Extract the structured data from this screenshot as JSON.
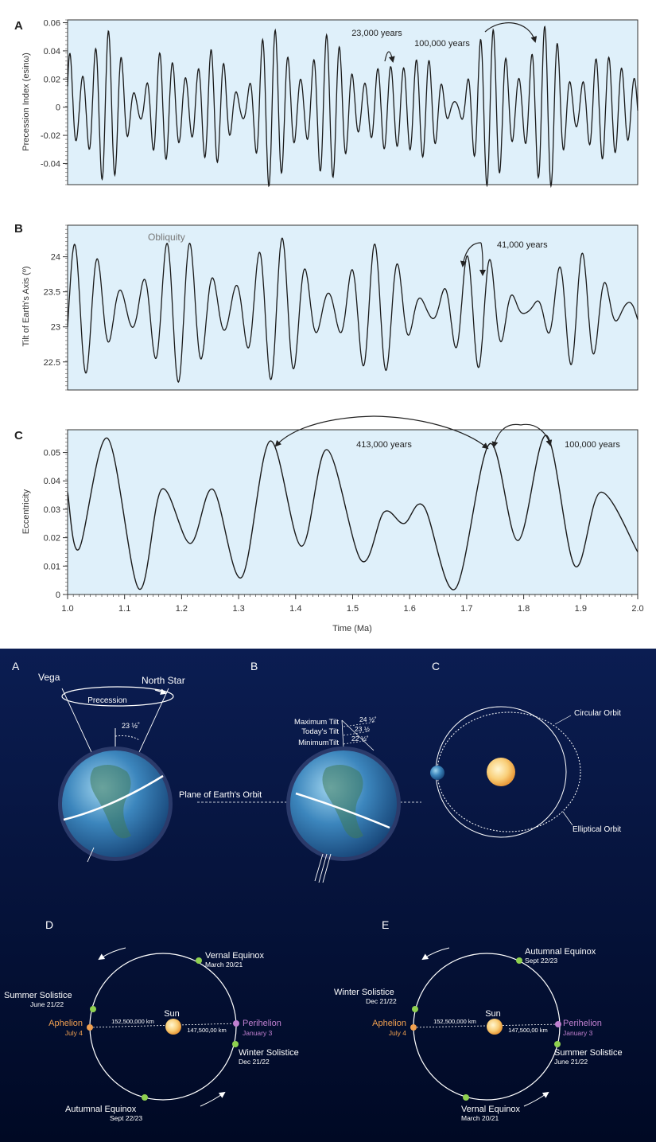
{
  "chart_data": [
    {
      "type": "line",
      "panel_label": "A",
      "ylabel": "Precession Index (esinω)",
      "yticks": [
        "0.06",
        "0.04",
        "0.02",
        "0",
        "-0.02",
        "-0.04"
      ],
      "ylim": [
        -0.055,
        0.062
      ],
      "xlim": [
        1.0,
        2.0
      ],
      "annotations": [
        "23,000 years",
        "100,000 years"
      ],
      "series": [
        {
          "x": [
            1.0,
            2.0
          ],
          "period_kyr": 23
        }
      ]
    },
    {
      "type": "line",
      "panel_label": "B",
      "ylabel": "Tilt of Earth's Axis (º)",
      "yticks": [
        "24",
        "23.5",
        "23",
        "22.5"
      ],
      "ylim": [
        22.1,
        24.45
      ],
      "xlim": [
        1.0,
        2.0
      ],
      "annotations": [
        "Obliquity",
        "41,000 years"
      ],
      "series": [
        {
          "x": [
            1.0,
            2.0
          ],
          "period_kyr": 41
        }
      ]
    },
    {
      "type": "line",
      "panel_label": "C",
      "ylabel": "Eccentricity",
      "xlabel": "Time (Ma)",
      "yticks": [
        "0.05",
        "0.04",
        "0.03",
        "0.02",
        "0.01",
        "0"
      ],
      "xticks": [
        "1.0",
        "1.1",
        "1.2",
        "1.3",
        "1.4",
        "1.5",
        "1.6",
        "1.7",
        "1.8",
        "1.9",
        "2.0"
      ],
      "ylim": [
        0,
        0.058
      ],
      "xlim": [
        1.0,
        2.0
      ],
      "annotations": [
        "413,000 years",
        "100,000 years"
      ],
      "series": [
        {
          "x": [
            1.0,
            1.02,
            1.07,
            1.125,
            1.165,
            1.215,
            1.255,
            1.305,
            1.355,
            1.41,
            1.455,
            1.515,
            1.555,
            1.59,
            1.625,
            1.68,
            1.74,
            1.79,
            1.84,
            1.89,
            1.935,
            2.0
          ],
          "y": [
            0.036,
            0.016,
            0.055,
            0.002,
            0.037,
            0.018,
            0.037,
            0.006,
            0.054,
            0.017,
            0.051,
            0.012,
            0.029,
            0.025,
            0.031,
            0.002,
            0.053,
            0.019,
            0.056,
            0.01,
            0.036,
            0.015
          ]
        }
      ]
    }
  ],
  "diagram": {
    "panels": [
      "A",
      "B",
      "C",
      "D",
      "E"
    ],
    "a": {
      "vega": "Vega",
      "north_star": "North Star",
      "precession": "Precession",
      "angle": "23 ½˚"
    },
    "b": {
      "max_tilt": "Maximum Tilt",
      "todays_tilt": "Today's Tilt",
      "min_tilt": "MinimumTilt",
      "max_val": "24 ½˚",
      "today_val": "23 ½",
      "min_val": "22 ½˚",
      "plane": "Plane of Earth's Orbit"
    },
    "c": {
      "circular": "Circular Orbit",
      "elliptical": "Elliptical Orbit"
    },
    "d": {
      "vernal": "Vernal Equinox",
      "vernal_date": "March 20/21",
      "summer": "Summer Solistice",
      "summer_date": "June 21/22",
      "aphelion": "Aphelion",
      "aphelion_date": "July 4",
      "sun": "Sun",
      "dist_far": "152,500,000 km",
      "dist_near": "147,500,00 km",
      "perihelion": "Perihelion",
      "perihelion_date": "January 3",
      "winter": "Winter Solistice",
      "winter_date": "Dec 21/22",
      "autumnal": "Autumnal Equinox",
      "autumnal_date": "Sept 22/23"
    },
    "e": {
      "autumnal": "Autumnal Equinox",
      "autumnal_date": "Sept 22/23",
      "winter": "Winter Solistice",
      "winter_date": "Dec 21/22",
      "aphelion": "Aphelion",
      "aphelion_date": "July 4",
      "sun": "Sun",
      "dist_far": "152,500,000 km",
      "dist_near": "147,500,00 km",
      "perihelion": "Perihelion",
      "perihelion_date": "January 3",
      "summer": "Summer Solistice",
      "summer_date": "June 21/22",
      "vernal": "Vernal Equinox",
      "vernal_date": "March 20/21"
    },
    "colors": {
      "sky_top": "#0a1a4a",
      "sky_bottom": "#000a24",
      "aphelion": "#f0a050",
      "perihelion": "#c080d0",
      "season_dot": "#8fd14f",
      "plot_bg": "#dff0fa"
    }
  }
}
